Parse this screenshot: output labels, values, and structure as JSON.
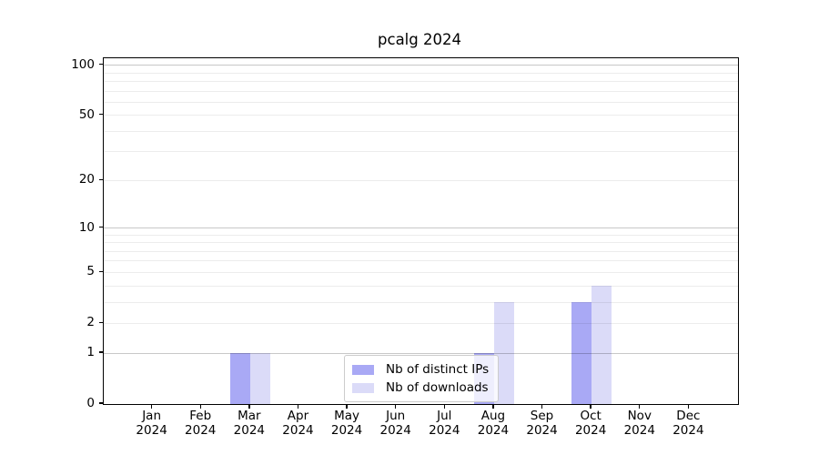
{
  "chart_data": {
    "type": "bar",
    "title": "pcalg 2024",
    "categories": [
      "Jan",
      "Feb",
      "Mar",
      "Apr",
      "May",
      "Jun",
      "Jul",
      "Aug",
      "Sep",
      "Oct",
      "Nov",
      "Dec"
    ],
    "year_label": "2024",
    "series": [
      {
        "name": "Nb of distinct IPs",
        "color": "#a9a9f5",
        "values": [
          0,
          0,
          1,
          0,
          0,
          0,
          0,
          1,
          0,
          3,
          0,
          0
        ]
      },
      {
        "name": "Nb of downloads",
        "color": "#dbdbf8",
        "values": [
          0,
          0,
          1,
          0,
          0,
          0,
          0,
          3,
          0,
          4,
          0,
          0
        ]
      }
    ],
    "y_axis": {
      "scale": "log10(1+y)",
      "tick_values": [
        0,
        1,
        2,
        5,
        10,
        20,
        50,
        100
      ],
      "gridline_values": [
        1,
        2,
        3,
        4,
        5,
        6,
        7,
        8,
        9,
        10,
        20,
        30,
        40,
        50,
        60,
        70,
        80,
        90,
        100
      ],
      "major_gridline_values": [
        1,
        10,
        100
      ],
      "ylim": [
        0,
        110
      ]
    },
    "legend": {
      "position": "bottom-center"
    },
    "colors": {
      "distinct_ips_bar": "#a9a9f5",
      "downloads_bar": "#dbdbf8",
      "major_grid": "#c9c9c9",
      "minor_grid": "#ececec",
      "axis": "#000000"
    }
  }
}
